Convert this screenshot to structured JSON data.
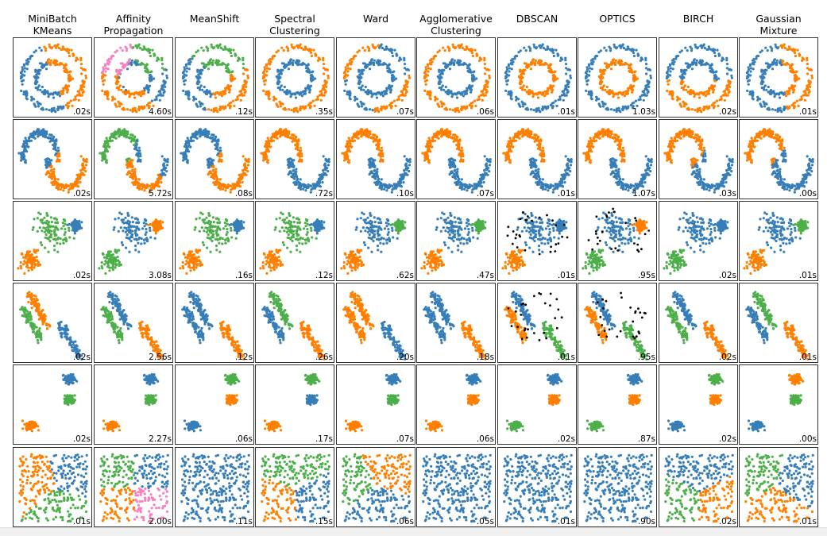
{
  "colors": {
    "b": "#377eb8",
    "o": "#ff7f00",
    "g": "#4daf4a",
    "p": "#f781bf",
    "k": "#000000"
  },
  "chart_data": {
    "type": "scatter",
    "grid": false,
    "algorithms": [
      "MiniBatch\nKMeans",
      "Affinity\nPropagation",
      "MeanShift",
      "Spectral\nClustering",
      "Ward",
      "Agglomerative\nClustering",
      "DBSCAN",
      "OPTICS",
      "BIRCH",
      "Gaussian\nMixture"
    ],
    "datasets": [
      "noisy_circles",
      "noisy_moons",
      "varied",
      "aniso",
      "blobs",
      "no_structure"
    ],
    "times": [
      [
        ".02s",
        "4.60s",
        ".12s",
        ".35s",
        ".07s",
        ".06s",
        ".01s",
        "1.03s",
        ".02s",
        ".01s"
      ],
      [
        ".02s",
        "5.72s",
        ".08s",
        ".72s",
        ".10s",
        ".07s",
        ".01s",
        "1.07s",
        ".03s",
        ".00s"
      ],
      [
        ".02s",
        "3.08s",
        ".16s",
        ".12s",
        ".62s",
        ".47s",
        ".01s",
        ".95s",
        ".02s",
        ".01s"
      ],
      [
        ".02s",
        "2.56s",
        ".12s",
        ".26s",
        ".20s",
        ".18s",
        ".01s",
        ".95s",
        ".02s",
        ".01s"
      ],
      [
        ".02s",
        "2.27s",
        ".06s",
        ".17s",
        ".07s",
        ".06s",
        ".02s",
        ".87s",
        ".02s",
        ".00s"
      ],
      [
        ".01s",
        "2.00s",
        ".11s",
        ".15s",
        ".06s",
        ".05s",
        ".01s",
        ".90s",
        ".02s",
        ".01s"
      ]
    ],
    "labels": [
      [
        {
          "centers": [
            [
              -0.5,
              -0.2,
              "b"
            ],
            [
              0.5,
              0.2,
              "o"
            ]
          ]
        },
        {
          "centers": [
            [
              -0.6,
              0.5,
              "p"
            ],
            [
              0.5,
              0.5,
              "g"
            ],
            [
              0,
              -0.7,
              "o"
            ],
            [
              0.7,
              -0.2,
              "b"
            ],
            [
              -0.7,
              -0.3,
              "o"
            ],
            [
              0,
              0,
              "b"
            ]
          ]
        },
        {
          "centers": [
            [
              0,
              0.7,
              "g"
            ],
            [
              -0.6,
              -0.1,
              "b"
            ],
            [
              0.5,
              -0.6,
              "o"
            ]
          ]
        },
        {
          "comp": [
            "o",
            "b"
          ]
        },
        {
          "centers": [
            [
              -0.8,
              0.8,
              "o"
            ],
            [
              0.8,
              -0.8,
              "o"
            ],
            [
              0,
              0,
              "b"
            ]
          ]
        },
        {
          "comp": [
            "o",
            "b"
          ]
        },
        {
          "comp": [
            "b",
            "o"
          ]
        },
        {
          "comp": [
            "b",
            "o"
          ]
        },
        {
          "centers": [
            [
              0,
              0.5,
              "b"
            ],
            [
              0,
              -0.6,
              "o"
            ]
          ]
        },
        {
          "centers": [
            [
              -0.4,
              0,
              "b"
            ],
            [
              0.6,
              0.1,
              "o"
            ]
          ]
        }
      ],
      [
        {
          "centers": [
            [
              -0.5,
              0.3,
              "b"
            ],
            [
              0.5,
              -0.3,
              "o"
            ]
          ]
        },
        {
          "centers": [
            [
              -0.6,
              0.5,
              "g"
            ],
            [
              0.6,
              0.1,
              "b"
            ],
            [
              0.2,
              -0.6,
              "o"
            ]
          ]
        },
        {
          "centers": [
            [
              -0.5,
              0.3,
              "b"
            ],
            [
              0.5,
              -0.3,
              "o"
            ]
          ]
        },
        {
          "comp": [
            "o",
            "b"
          ]
        },
        {
          "comp": [
            "o",
            "b"
          ]
        },
        {
          "comp": [
            "o",
            "b"
          ]
        },
        {
          "comp": [
            "o",
            "b"
          ]
        },
        {
          "comp": [
            "o",
            "b"
          ]
        },
        {
          "centers": [
            [
              -0.5,
              0.4,
              "o"
            ],
            [
              0.5,
              -0.3,
              "b"
            ]
          ]
        },
        {
          "centers": [
            [
              -0.5,
              0.4,
              "o"
            ],
            [
              0.4,
              -0.3,
              "b"
            ]
          ]
        }
      ],
      [
        {
          "comp": [
            "g",
            "b",
            "o"
          ]
        },
        {
          "comp": [
            "b",
            "o",
            "g"
          ]
        },
        {
          "comp": [
            "g",
            "b",
            "o"
          ]
        },
        {
          "comp": [
            "g",
            "b",
            "o"
          ]
        },
        {
          "comp": [
            "b",
            "g",
            "o"
          ]
        },
        {
          "comp": [
            "b",
            "g",
            "o"
          ]
        },
        {
          "comp": [
            "b",
            "b",
            "o"
          ],
          "noise": true
        },
        {
          "comp": [
            "b",
            "o",
            "g"
          ],
          "noise": true
        },
        {
          "comp": [
            "b",
            "b",
            "g"
          ]
        },
        {
          "comp": [
            "b",
            "g",
            "o"
          ]
        }
      ],
      [
        {
          "comp": [
            "o",
            "g",
            "b"
          ]
        },
        {
          "comp": [
            "b",
            "g",
            "o"
          ]
        },
        {
          "comp": [
            "b",
            "b",
            "o"
          ]
        },
        {
          "comp": [
            "g",
            "b",
            "o"
          ]
        },
        {
          "comp": [
            "o",
            "o",
            "b"
          ]
        },
        {
          "comp": [
            "b",
            "b",
            "o"
          ]
        },
        {
          "comp": [
            "b",
            "o",
            "g"
          ],
          "noise": true
        },
        {
          "comp": [
            "b",
            "o",
            "g"
          ],
          "noise": true
        },
        {
          "comp": [
            "b",
            "g",
            "o"
          ]
        },
        {
          "comp": [
            "g",
            "b",
            "o"
          ]
        }
      ],
      [
        {
          "comp": [
            "b",
            "g",
            "o"
          ]
        },
        {
          "comp": [
            "b",
            "g",
            "o"
          ]
        },
        {
          "comp": [
            "g",
            "o",
            "b"
          ]
        },
        {
          "comp": [
            "g",
            "b",
            "o"
          ]
        },
        {
          "comp": [
            "b",
            "g",
            "o"
          ]
        },
        {
          "comp": [
            "b",
            "o",
            "o"
          ]
        },
        {
          "comp": [
            "b",
            "o",
            "g"
          ]
        },
        {
          "comp": [
            "b",
            "o",
            "g"
          ]
        },
        {
          "comp": [
            "g",
            "o",
            "b"
          ]
        },
        {
          "comp": [
            "o",
            "g",
            "b"
          ]
        }
      ],
      [
        {
          "centers": [
            [
              -0.5,
              0.2,
              "o"
            ],
            [
              0.5,
              0.4,
              "b"
            ],
            [
              0.2,
              -0.6,
              "g"
            ]
          ]
        },
        {
          "centers": [
            [
              -0.5,
              0.5,
              "g"
            ],
            [
              0.5,
              0.5,
              "b"
            ],
            [
              -0.5,
              -0.5,
              "o"
            ],
            [
              0.5,
              -0.5,
              "p"
            ]
          ]
        },
        {
          "comp": [
            "b"
          ]
        },
        {
          "centers": [
            [
              0,
              0.6,
              "g"
            ],
            [
              -0.5,
              -0.5,
              "o"
            ],
            [
              0.5,
              -0.4,
              "b"
            ]
          ]
        },
        {
          "centers": [
            [
              -0.7,
              0.2,
              "g"
            ],
            [
              0.3,
              0.6,
              "o"
            ],
            [
              0,
              -0.6,
              "b"
            ]
          ]
        },
        {
          "comp": [
            "b"
          ]
        },
        {
          "comp": [
            "b"
          ]
        },
        {
          "comp": [
            "b"
          ]
        },
        {
          "centers": [
            [
              0,
              0.6,
              "b"
            ],
            [
              -0.6,
              -0.5,
              "g"
            ],
            [
              0.6,
              -0.5,
              "o"
            ]
          ]
        },
        {
          "centers": [
            [
              -0.5,
              0.5,
              "g"
            ],
            [
              0.5,
              0.3,
              "b"
            ],
            [
              -0.1,
              -0.6,
              "o"
            ]
          ]
        }
      ]
    ]
  }
}
